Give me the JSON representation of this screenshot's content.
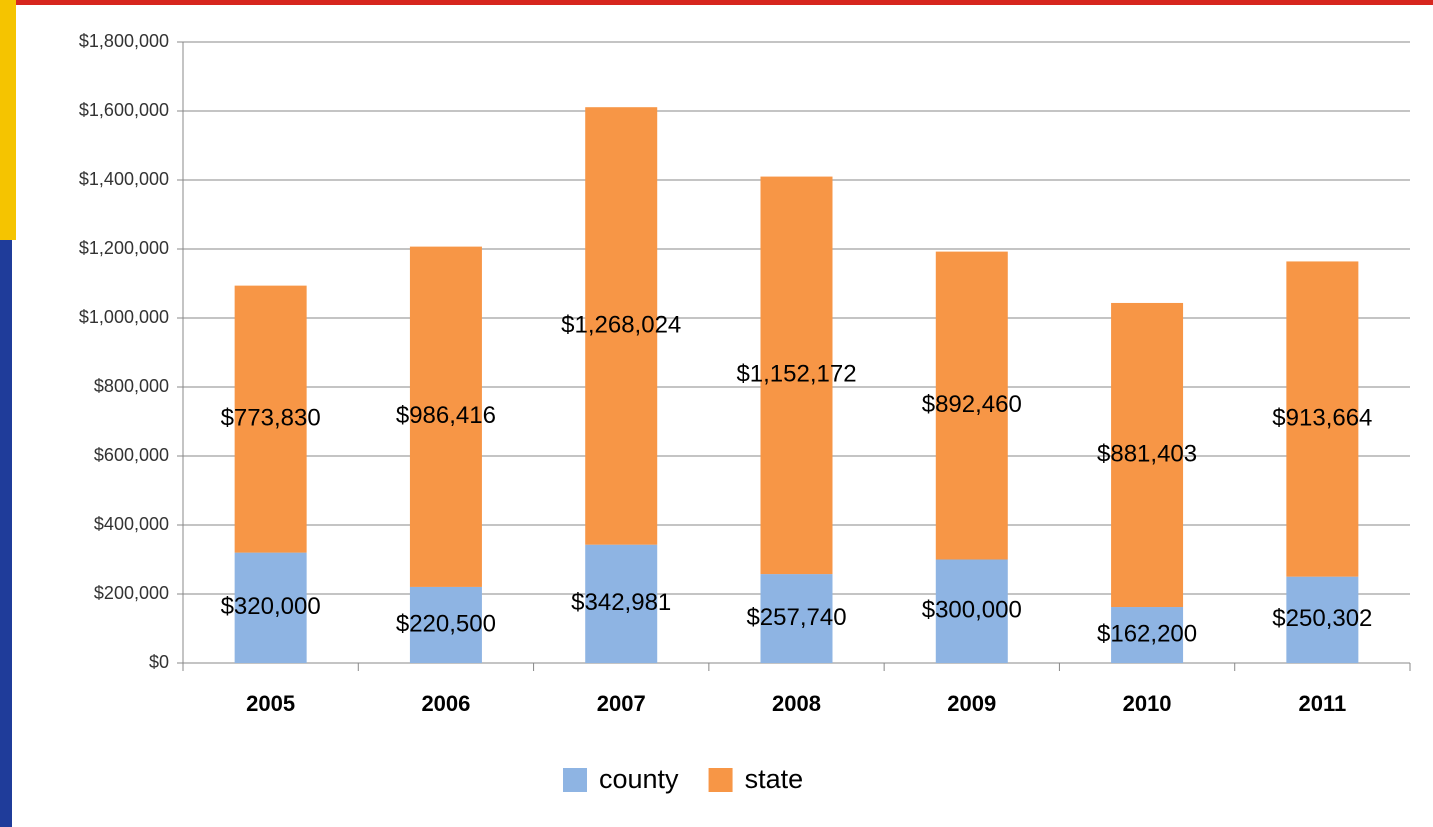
{
  "chart_data": {
    "type": "stacked_bar",
    "categories": [
      "2005",
      "2006",
      "2007",
      "2008",
      "2009",
      "2010",
      "2011"
    ],
    "series": [
      {
        "name": "county",
        "color": "#8eb4e3",
        "values": [
          320000,
          220500,
          342981,
          257740,
          300000,
          162200,
          250302
        ],
        "value_labels": [
          "$320,000",
          "$220,500",
          "$342,981",
          "$257,740",
          "$300,000",
          "$162,200",
          "$250,302"
        ]
      },
      {
        "name": "state",
        "color": "#f79646",
        "values": [
          773830,
          986416,
          1268024,
          1152172,
          892460,
          881403,
          913664
        ],
        "value_labels": [
          "$773,830",
          "$986,416",
          "$1,268,024",
          "$1,152,172",
          "$892,460",
          "$881,403",
          "$913,664"
        ]
      }
    ],
    "ylim": [
      0,
      1800000
    ],
    "yticks": [
      {
        "value": 0,
        "label": "$0"
      },
      {
        "value": 200000,
        "label": "$200,000"
      },
      {
        "value": 400000,
        "label": "$400,000"
      },
      {
        "value": 600000,
        "label": "$600,000"
      },
      {
        "value": 800000,
        "label": "$800,000"
      },
      {
        "value": 1000000,
        "label": "$1,000,000"
      },
      {
        "value": 1200000,
        "label": "$1,200,000"
      },
      {
        "value": 1400000,
        "label": "$1,400,000"
      },
      {
        "value": 1600000,
        "label": "$1,600,000"
      },
      {
        "value": 1800000,
        "label": "$1,800,000"
      }
    ],
    "grid": true,
    "legend": "bottom"
  }
}
